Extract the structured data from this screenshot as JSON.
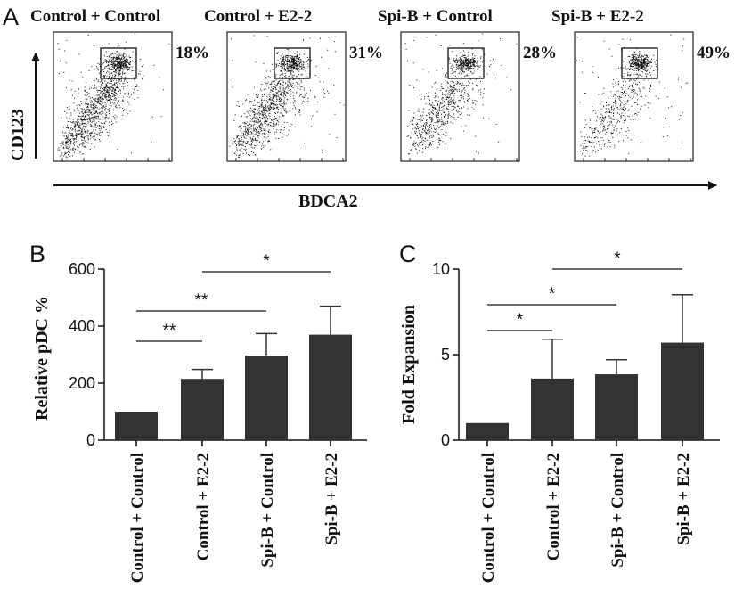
{
  "panel_a": {
    "letter": "A",
    "y_axis_label": "CD123",
    "x_axis_label": "BDCA2",
    "plots": [
      {
        "title": "Control + Control",
        "percent": "18%",
        "density": 0.95
      },
      {
        "title": "Control + E2-2",
        "percent": "31%",
        "density": 0.85
      },
      {
        "title": "Spi-B + Control",
        "percent": "28%",
        "density": 0.55
      },
      {
        "title": "Spi-B + E2-2",
        "percent": "49%",
        "density": 0.4
      }
    ]
  },
  "chart_data": [
    {
      "panel": "B",
      "type": "bar",
      "categories": [
        "Control + Control",
        "Control + E2-2",
        "Spi-B + Control",
        "Spi-B + E2-2"
      ],
      "values": [
        100,
        215,
        297,
        370
      ],
      "errors": [
        0,
        33,
        77,
        100
      ],
      "ylabel": "Relative pDC %",
      "ylim": [
        0,
        600
      ],
      "yticks": [
        0,
        200,
        400,
        600
      ],
      "bar_color": "#333333",
      "significance": [
        {
          "from": 0,
          "to": 1,
          "label": "**"
        },
        {
          "from": 0,
          "to": 2,
          "label": "**"
        },
        {
          "from": 1,
          "to": 3,
          "label": "*"
        }
      ]
    },
    {
      "panel": "C",
      "type": "bar",
      "categories": [
        "Control + Control",
        "Control + E2-2",
        "Spi-B + Control",
        "Spi-B + E2-2"
      ],
      "values": [
        1,
        3.6,
        3.85,
        5.7
      ],
      "errors": [
        0,
        2.3,
        0.85,
        2.8
      ],
      "ylabel": "Fold Expansion",
      "ylim": [
        0,
        10
      ],
      "yticks": [
        0,
        5,
        10
      ],
      "bar_color": "#333333",
      "significance": [
        {
          "from": 0,
          "to": 1,
          "label": "*"
        },
        {
          "from": 0,
          "to": 2,
          "label": "*"
        },
        {
          "from": 1,
          "to": 3,
          "label": "*"
        }
      ]
    }
  ]
}
